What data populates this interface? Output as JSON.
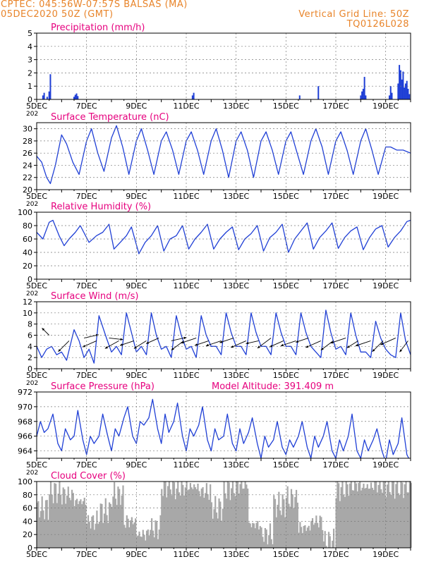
{
  "header": {
    "line1_left": "CPTEC:   045:56W-07:57S   BALSAS (MA)",
    "line2_left": "05DEC2020 50Z (GMT)",
    "line1_right": "Vertical Grid Line: 50Z",
    "line2_right": "TQ0126L028"
  },
  "colors": {
    "header": "#e8842a",
    "title": "#e6007e",
    "series": "#1f3fd6",
    "cloud": "#a8a8a8",
    "arrow": "#000000"
  },
  "x_axis": {
    "ticks": [
      "5DEC",
      "7DEC",
      "9DEC",
      "11DEC",
      "13DEC",
      "15DEC",
      "17DEC",
      "19DEC"
    ],
    "tick_days": [
      0,
      2,
      4,
      6,
      8,
      10,
      12,
      14
    ],
    "range_days": [
      0,
      15
    ],
    "year_fragment": "202"
  },
  "chart_data": [
    {
      "id": "precip",
      "type": "bar",
      "title": "Precipitation (mm/h)",
      "ylim": [
        0,
        5
      ],
      "yticks": [
        0,
        1,
        2,
        3,
        4,
        5
      ],
      "x": [
        0.25,
        0.3,
        0.42,
        0.5,
        0.55,
        1.5,
        1.55,
        1.6,
        1.65,
        6.25,
        6.3,
        10.55,
        11.3,
        13.0,
        13.05,
        13.1,
        13.15,
        13.2,
        14.15,
        14.2,
        14.25,
        14.5,
        14.55,
        14.6,
        14.65,
        14.7,
        14.75,
        14.8,
        14.85,
        14.9,
        14.95
      ],
      "values": [
        0.3,
        0.5,
        0.2,
        0.6,
        1.9,
        0.2,
        0.35,
        0.45,
        0.25,
        0.3,
        0.5,
        0.3,
        1.0,
        0.3,
        0.6,
        0.8,
        1.7,
        0.3,
        0.3,
        1.0,
        0.5,
        1.2,
        2.6,
        2.2,
        1.5,
        2.1,
        0.9,
        1.2,
        1.4,
        0.8,
        0.4
      ]
    },
    {
      "id": "temp",
      "type": "line",
      "title": "Surface Temperature (nC)",
      "ylim": [
        20,
        31
      ],
      "yticks": [
        20,
        22,
        24,
        26,
        28,
        30
      ],
      "x": [
        0.0,
        0.2,
        0.4,
        0.55,
        0.75,
        1.0,
        1.2,
        1.45,
        1.7,
        2.0,
        2.2,
        2.45,
        2.7,
        3.0,
        3.2,
        3.45,
        3.7,
        4.0,
        4.2,
        4.45,
        4.7,
        5.0,
        5.2,
        5.45,
        5.7,
        6.0,
        6.2,
        6.45,
        6.7,
        7.0,
        7.2,
        7.45,
        7.7,
        8.0,
        8.2,
        8.45,
        8.7,
        9.0,
        9.2,
        9.45,
        9.7,
        10.0,
        10.2,
        10.45,
        10.7,
        11.0,
        11.2,
        11.45,
        11.7,
        12.0,
        12.2,
        12.45,
        12.7,
        13.0,
        13.2,
        13.45,
        13.7,
        14.0,
        14.2,
        14.45,
        14.7,
        15.0
      ],
      "values": [
        25.5,
        24.5,
        22.0,
        21.0,
        24.0,
        29.0,
        27.5,
        24.5,
        22.5,
        28.0,
        30.0,
        26.0,
        23.0,
        28.5,
        30.5,
        27.0,
        22.5,
        28.0,
        30.0,
        26.5,
        22.5,
        28.0,
        29.5,
        26.5,
        22.5,
        28.0,
        29.5,
        26.5,
        22.5,
        28.0,
        30.0,
        26.5,
        22.0,
        28.0,
        29.5,
        26.5,
        22.0,
        28.0,
        29.5,
        26.5,
        22.5,
        28.0,
        29.5,
        26.0,
        22.5,
        28.0,
        30.0,
        27.0,
        22.5,
        28.0,
        29.5,
        26.5,
        22.5,
        28.0,
        30.0,
        26.5,
        22.5,
        27.0,
        27.0,
        26.5,
        26.5,
        26.0
      ]
    },
    {
      "id": "rh",
      "type": "line",
      "title": "Relative Humidity (%)",
      "ylim": [
        0,
        100
      ],
      "yticks": [
        0,
        20,
        40,
        60,
        80,
        100
      ],
      "x": [
        0.0,
        0.25,
        0.5,
        0.65,
        0.9,
        1.1,
        1.3,
        1.55,
        1.75,
        2.1,
        2.4,
        2.65,
        2.9,
        3.1,
        3.35,
        3.6,
        3.8,
        4.1,
        4.35,
        4.6,
        4.85,
        5.1,
        5.35,
        5.6,
        5.85,
        6.1,
        6.35,
        6.6,
        6.85,
        7.1,
        7.35,
        7.6,
        7.85,
        8.1,
        8.35,
        8.6,
        8.85,
        9.1,
        9.35,
        9.6,
        9.85,
        10.1,
        10.35,
        10.6,
        10.85,
        11.1,
        11.35,
        11.6,
        11.85,
        12.1,
        12.35,
        12.6,
        12.85,
        13.1,
        13.35,
        13.6,
        13.85,
        14.1,
        14.35,
        14.6,
        14.85,
        15.0
      ],
      "values": [
        70,
        60,
        85,
        88,
        65,
        50,
        60,
        70,
        80,
        55,
        65,
        70,
        82,
        45,
        55,
        65,
        78,
        38,
        55,
        65,
        80,
        42,
        60,
        65,
        80,
        45,
        60,
        70,
        82,
        45,
        60,
        70,
        78,
        44,
        60,
        68,
        80,
        42,
        62,
        70,
        82,
        40,
        60,
        72,
        84,
        45,
        62,
        72,
        84,
        46,
        62,
        72,
        78,
        44,
        62,
        75,
        80,
        48,
        62,
        72,
        86,
        88
      ]
    },
    {
      "id": "wind",
      "type": "line",
      "title": "Surface Wind (m/s)",
      "ylim": [
        0,
        12
      ],
      "yticks": [
        0,
        2,
        4,
        6,
        8,
        10,
        12
      ],
      "x": [
        0.0,
        0.2,
        0.4,
        0.6,
        0.8,
        1.0,
        1.2,
        1.5,
        1.7,
        1.9,
        2.1,
        2.3,
        2.5,
        2.8,
        3.0,
        3.2,
        3.4,
        3.6,
        3.8,
        4.0,
        4.2,
        4.4,
        4.6,
        4.8,
        5.0,
        5.2,
        5.4,
        5.6,
        5.8,
        6.0,
        6.2,
        6.4,
        6.6,
        6.8,
        7.0,
        7.2,
        7.4,
        7.6,
        7.8,
        8.0,
        8.2,
        8.4,
        8.6,
        8.8,
        9.0,
        9.2,
        9.4,
        9.6,
        9.8,
        10.0,
        10.2,
        10.4,
        10.6,
        10.8,
        11.0,
        11.2,
        11.4,
        11.6,
        11.8,
        12.0,
        12.2,
        12.4,
        12.6,
        12.8,
        13.0,
        13.2,
        13.4,
        13.6,
        13.8,
        14.0,
        14.2,
        14.4,
        14.6,
        14.8,
        15.0
      ],
      "values": [
        4.0,
        2.0,
        3.5,
        4.0,
        2.5,
        3.0,
        1.5,
        7.0,
        5.0,
        2.0,
        3.5,
        1.0,
        9.5,
        5.5,
        3.0,
        4.0,
        2.5,
        10.0,
        6.5,
        3.0,
        4.0,
        2.5,
        10.0,
        6.0,
        3.5,
        4.0,
        2.0,
        9.5,
        6.0,
        3.5,
        4.0,
        2.0,
        9.5,
        6.0,
        4.0,
        4.0,
        2.5,
        10.0,
        6.5,
        4.0,
        4.0,
        2.5,
        10.0,
        6.5,
        4.0,
        4.0,
        2.5,
        10.0,
        6.5,
        4.0,
        4.0,
        2.5,
        10.0,
        6.5,
        4.0,
        3.0,
        2.0,
        10.5,
        6.5,
        3.5,
        4.0,
        2.5,
        10.0,
        6.0,
        3.0,
        3.0,
        2.0,
        8.5,
        5.5,
        3.5,
        2.5,
        2.0,
        10.0,
        5.0,
        2.5
      ],
      "arrows": {
        "x": [
          0.5,
          1.3,
          1.9,
          2.4,
          2.9,
          3.3,
          3.9,
          4.4,
          4.9,
          5.4,
          5.9,
          6.4,
          6.9,
          7.4,
          7.9,
          8.4,
          8.9,
          9.4,
          9.9,
          10.4,
          10.9,
          11.4,
          11.9,
          12.4,
          12.9,
          13.4,
          13.9,
          14.4,
          14.9
        ],
        "y": [
          6.0,
          5.0,
          5.5,
          5.0,
          5.5,
          5.0,
          5.0,
          5.0,
          5.5,
          5.0,
          5.0,
          5.5,
          5.0,
          5.0,
          5.5,
          5.0,
          5.0,
          5.5,
          5.0,
          5.0,
          5.5,
          5.0,
          5.0,
          5.5,
          5.0,
          5.0,
          5.0,
          5.5,
          5.0
        ],
        "u": [
          -0.6,
          -0.7,
          0.9,
          -0.9,
          0.9,
          -0.9,
          -0.9,
          -0.8,
          -0.9,
          0.9,
          -0.8,
          -0.9,
          -0.9,
          -0.9,
          -0.9,
          -0.9,
          -0.9,
          -0.8,
          -0.9,
          -0.9,
          -0.9,
          -0.9,
          -0.8,
          -0.9,
          -0.8,
          -0.9,
          -0.7,
          -0.9,
          -0.6
        ],
        "v": [
          0.6,
          -0.7,
          0.2,
          -0.4,
          -0.1,
          -0.5,
          -0.3,
          -0.5,
          -0.4,
          0.2,
          -0.6,
          -0.3,
          -0.3,
          -0.3,
          -0.3,
          -0.4,
          -0.2,
          -0.6,
          -0.4,
          -0.3,
          -0.3,
          -0.4,
          -0.6,
          -0.3,
          -0.5,
          -0.3,
          -0.7,
          -0.4,
          -0.8
        ],
        "mag": [
          1.7,
          2.2,
          2.3,
          2.2,
          2.2,
          2.2,
          2.2,
          2.2,
          2.0,
          2.4,
          2.2,
          2.4,
          2.2,
          2.4,
          2.2,
          2.4,
          2.0,
          2.4,
          2.2,
          2.4,
          2.0,
          2.4,
          2.2,
          2.4,
          2.0,
          2.4,
          2.2,
          2.4,
          2.0
        ]
      }
    },
    {
      "id": "pres",
      "type": "line",
      "title": "Surface Pressure (hPa)",
      "subtitle": "Model Altitude: 391.409  m",
      "ylim": [
        963,
        972
      ],
      "yticks": [
        964,
        966,
        968,
        970,
        972
      ],
      "x": [
        0.0,
        0.15,
        0.3,
        0.45,
        0.65,
        0.85,
        1.0,
        1.15,
        1.35,
        1.5,
        1.65,
        1.85,
        2.0,
        2.15,
        2.3,
        2.5,
        2.65,
        2.85,
        3.0,
        3.15,
        3.3,
        3.5,
        3.65,
        3.85,
        4.0,
        4.15,
        4.3,
        4.5,
        4.65,
        4.85,
        5.0,
        5.15,
        5.3,
        5.5,
        5.65,
        5.85,
        6.0,
        6.15,
        6.3,
        6.5,
        6.65,
        6.85,
        7.0,
        7.15,
        7.3,
        7.5,
        7.65,
        7.85,
        8.0,
        8.15,
        8.3,
        8.5,
        8.65,
        8.85,
        9.0,
        9.15,
        9.3,
        9.5,
        9.65,
        9.85,
        10.0,
        10.15,
        10.3,
        10.5,
        10.65,
        10.85,
        11.0,
        11.15,
        11.3,
        11.5,
        11.65,
        11.85,
        12.0,
        12.15,
        12.3,
        12.5,
        12.65,
        12.85,
        13.0,
        13.15,
        13.3,
        13.5,
        13.65,
        13.85,
        14.0,
        14.15,
        14.3,
        14.5,
        14.65,
        14.85,
        15.0
      ],
      "values": [
        966.0,
        968.0,
        966.5,
        967.0,
        969.0,
        965.0,
        964.0,
        967.0,
        965.5,
        966.0,
        969.5,
        965.5,
        963.5,
        966.0,
        965.0,
        966.0,
        969.0,
        966.0,
        964.0,
        967.0,
        966.0,
        968.5,
        970.0,
        966.0,
        965.0,
        968.0,
        967.5,
        968.5,
        971.0,
        967.0,
        965.0,
        969.0,
        966.5,
        968.0,
        970.5,
        966.0,
        964.0,
        967.0,
        966.0,
        967.5,
        970.0,
        965.5,
        964.0,
        967.0,
        965.5,
        966.0,
        969.0,
        965.0,
        964.0,
        967.0,
        965.0,
        966.5,
        968.5,
        965.0,
        963.0,
        966.0,
        964.5,
        965.5,
        968.0,
        964.5,
        963.5,
        965.5,
        964.5,
        966.0,
        968.0,
        964.5,
        963.0,
        966.0,
        964.5,
        966.0,
        968.0,
        964.0,
        963.0,
        965.5,
        964.0,
        966.0,
        969.0,
        964.0,
        963.0,
        965.5,
        964.0,
        965.5,
        967.0,
        964.0,
        962.5,
        965.5,
        963.5,
        965.0,
        968.5,
        963.5,
        962.5
      ]
    },
    {
      "id": "cloud",
      "type": "bar",
      "title": "Cloud Cover (%)",
      "ylim": [
        0,
        100
      ],
      "yticks": [
        0,
        20,
        40,
        60,
        80,
        100
      ],
      "x": [
        0.0,
        0.5,
        1.0,
        1.5,
        2.0,
        2.5,
        3.0,
        3.5,
        4.0,
        4.5,
        5.0,
        5.5,
        6.0,
        6.5,
        7.0,
        7.5,
        8.0,
        8.5,
        9.0,
        9.5,
        10.0,
        10.5,
        11.0,
        11.5,
        12.0,
        12.5,
        13.0,
        13.5,
        14.0,
        14.5,
        15.0
      ],
      "values": [
        60,
        85,
        80,
        70,
        40,
        55,
        80,
        40,
        20,
        30,
        95,
        90,
        92,
        85,
        60,
        90,
        95,
        35,
        20,
        65,
        75,
        30,
        40,
        10,
        90,
        95,
        92,
        95,
        94,
        93,
        95
      ]
    }
  ]
}
